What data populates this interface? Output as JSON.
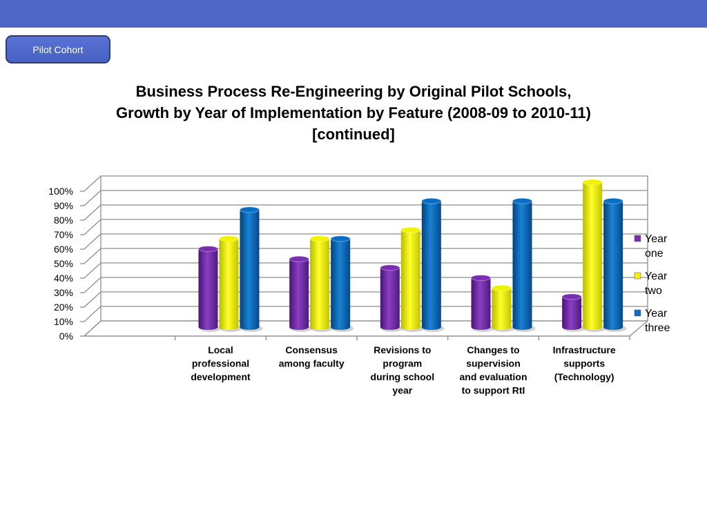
{
  "header": {
    "cohort_label": "Pilot Cohort"
  },
  "colors": {
    "banner": "#4f67c7",
    "year_one": "#7a2fb0",
    "year_two": "#f2f200",
    "year_three": "#0a6fc4"
  },
  "chart_data": {
    "type": "bar",
    "title_lines": [
      "Business Process Re-Engineering by Original Pilot Schools,",
      "Growth by Year of Implementation by Feature (2008-09 to 2010-11)",
      "[continued]"
    ],
    "categories": [
      [
        "Local",
        "professional",
        "development"
      ],
      [
        "Consensus",
        "among faculty"
      ],
      [
        "Revisions to",
        "program",
        "during school",
        "year"
      ],
      [
        "Changes to",
        "supervision",
        "and evaluation",
        "to support RtI"
      ],
      [
        "Infrastructure",
        "supports",
        "(Technology)"
      ]
    ],
    "series": [
      {
        "name": [
          "Year",
          "one"
        ],
        "color": "#7a2fb0",
        "values": [
          54,
          47,
          41,
          34,
          21
        ]
      },
      {
        "name": [
          "Year",
          "two"
        ],
        "color": "#f2f200",
        "values": [
          61,
          61,
          67,
          27,
          100
        ]
      },
      {
        "name": [
          "Year",
          "three"
        ],
        "color": "#0a6fc4",
        "values": [
          81,
          61,
          87,
          87,
          87
        ]
      }
    ],
    "y_ticks": [
      "0%",
      "10%",
      "20%",
      "30%",
      "40%",
      "50%",
      "60%",
      "70%",
      "80%",
      "90%",
      "100%"
    ],
    "ylim": [
      0,
      100
    ],
    "grid": true,
    "legend_position": "right",
    "empty_leading_category": true
  }
}
